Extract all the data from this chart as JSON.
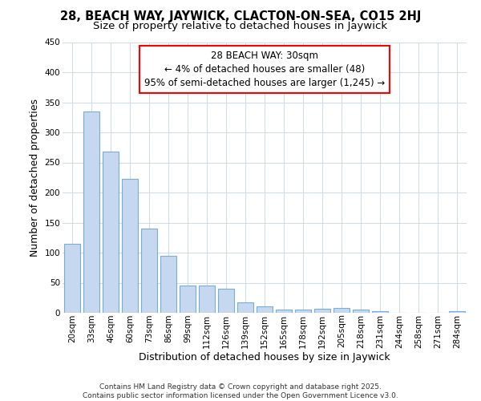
{
  "title_line1": "28, BEACH WAY, JAYWICK, CLACTON-ON-SEA, CO15 2HJ",
  "title_line2": "Size of property relative to detached houses in Jaywick",
  "xlabel": "Distribution of detached houses by size in Jaywick",
  "ylabel": "Number of detached properties",
  "categories": [
    "20sqm",
    "33sqm",
    "46sqm",
    "60sqm",
    "73sqm",
    "86sqm",
    "99sqm",
    "112sqm",
    "126sqm",
    "139sqm",
    "152sqm",
    "165sqm",
    "178sqm",
    "192sqm",
    "205sqm",
    "218sqm",
    "231sqm",
    "244sqm",
    "258sqm",
    "271sqm",
    "284sqm"
  ],
  "values": [
    115,
    335,
    268,
    223,
    140,
    95,
    46,
    45,
    40,
    18,
    11,
    6,
    5,
    7,
    8,
    5,
    3,
    0,
    0,
    0,
    3
  ],
  "bar_color": "#c5d8f0",
  "bar_edge_color": "#7aadd4",
  "annotation_text_line1": "28 BEACH WAY: 30sqm",
  "annotation_text_line2": "← 4% of detached houses are smaller (48)",
  "annotation_text_line3": "95% of semi-detached houses are larger (1,245) →",
  "annotation_box_color": "#ff0000",
  "footer_line1": "Contains HM Land Registry data © Crown copyright and database right 2025.",
  "footer_line2": "Contains public sector information licensed under the Open Government Licence v3.0.",
  "ylim": [
    0,
    450
  ],
  "yticks": [
    0,
    50,
    100,
    150,
    200,
    250,
    300,
    350,
    400,
    450
  ],
  "background_color": "#ffffff",
  "grid_color": "#d0dce8",
  "title_fontsize": 10.5,
  "subtitle_fontsize": 9.5,
  "axis_label_fontsize": 9,
  "tick_fontsize": 7.5,
  "footer_fontsize": 6.5,
  "annot_fontsize": 8.5
}
